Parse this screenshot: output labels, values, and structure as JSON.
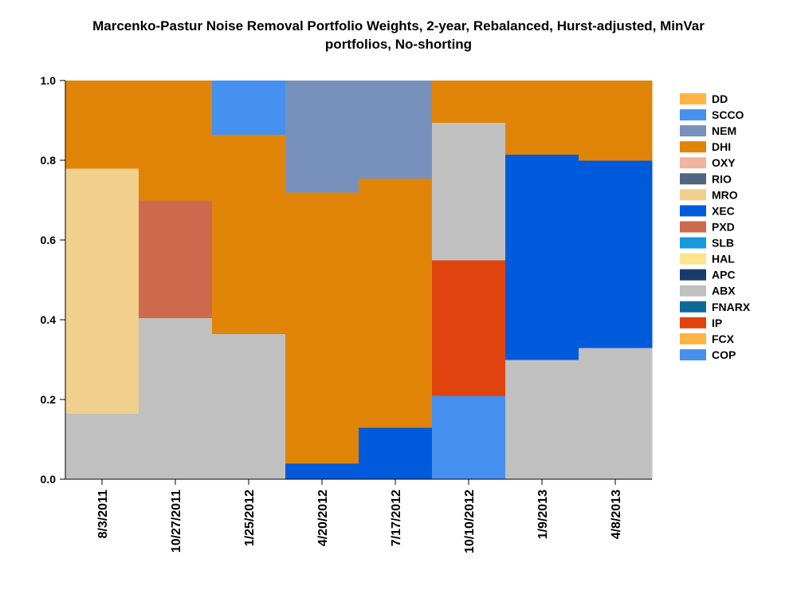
{
  "chart_data": {
    "type": "area",
    "stacking": "step",
    "title_lines": [
      "Marcenko-Pastur Noise Removal Portfolio Weights, 2-year, Rebalanced, Hurst-adjusted, MinVar",
      "portfolios, No-shorting"
    ],
    "xlabel": "",
    "ylabel": "",
    "ylim": [
      0,
      1
    ],
    "yticks": [
      "0.0",
      "0.2",
      "0.4",
      "0.6",
      "0.8",
      "1.0"
    ],
    "categories": [
      "8/3/2011",
      "10/27/2011",
      "1/25/2012",
      "4/20/2012",
      "7/17/2012",
      "10/10/2012",
      "1/9/2013",
      "4/8/2013"
    ],
    "legend_position": "right",
    "grid": false,
    "series": [
      {
        "name": "COP",
        "color": "#4690F0",
        "values": [
          0,
          0,
          0,
          0,
          0,
          0.21,
          0,
          0
        ]
      },
      {
        "name": "FCX",
        "color": "#FFB445",
        "values": [
          0,
          0,
          0,
          0,
          0,
          0,
          0,
          0
        ]
      },
      {
        "name": "IP",
        "color": "#E0440E",
        "values": [
          0,
          0,
          0,
          0,
          0,
          0.34,
          0,
          0
        ]
      },
      {
        "name": "FNARX",
        "color": "#0F6A9A",
        "values": [
          0,
          0,
          0,
          0,
          0,
          0,
          0,
          0
        ]
      },
      {
        "name": "ABX",
        "color": "#C0C0C0",
        "values": [
          0.165,
          0.405,
          0.365,
          0,
          0,
          0.345,
          0.3,
          0.33
        ]
      },
      {
        "name": "APC",
        "color": "#1A3A6B",
        "values": [
          0,
          0,
          0,
          0,
          0,
          0,
          0,
          0
        ]
      },
      {
        "name": "HAL",
        "color": "#FFE38C",
        "values": [
          0,
          0,
          0,
          0,
          0,
          0,
          0,
          0
        ]
      },
      {
        "name": "SLB",
        "color": "#159ADC",
        "values": [
          0,
          0,
          0,
          0,
          0,
          0,
          0,
          0
        ]
      },
      {
        "name": "PXD",
        "color": "#CD6A4E",
        "values": [
          0,
          0.295,
          0,
          0,
          0,
          0,
          0,
          0
        ]
      },
      {
        "name": "XEC",
        "color": "#005ADC",
        "values": [
          0,
          0,
          0,
          0.04,
          0.13,
          0,
          0.515,
          0.47
        ]
      },
      {
        "name": "MRO",
        "color": "#F0D08C",
        "values": [
          0.615,
          0,
          0,
          0,
          0,
          0,
          0,
          0
        ]
      },
      {
        "name": "RIO",
        "color": "#526482",
        "values": [
          0,
          0,
          0,
          0,
          0,
          0,
          0,
          0
        ]
      },
      {
        "name": "OXY",
        "color": "#F0B4A0",
        "values": [
          0,
          0,
          0,
          0,
          0,
          0,
          0,
          0
        ]
      },
      {
        "name": "DHI",
        "color": "#E08408",
        "values": [
          0.22,
          0.3,
          0.5,
          0.68,
          0.625,
          0.105,
          0.185,
          0.2
        ]
      },
      {
        "name": "NEM",
        "color": "#7890BC",
        "values": [
          0,
          0,
          0,
          0.28,
          0.245,
          0,
          0,
          0
        ]
      },
      {
        "name": "SCCO",
        "color": "#4690F0",
        "values": [
          0,
          0,
          0.135,
          0,
          0,
          0,
          0,
          0
        ]
      },
      {
        "name": "DD",
        "color": "#FFB445",
        "values": [
          0,
          0,
          0,
          0,
          0,
          0,
          0,
          0
        ]
      }
    ],
    "legend_order": [
      "DD",
      "SCCO",
      "NEM",
      "DHI",
      "OXY",
      "RIO",
      "MRO",
      "XEC",
      "PXD",
      "SLB",
      "HAL",
      "APC",
      "ABX",
      "FNARX",
      "IP",
      "FCX",
      "COP"
    ]
  }
}
